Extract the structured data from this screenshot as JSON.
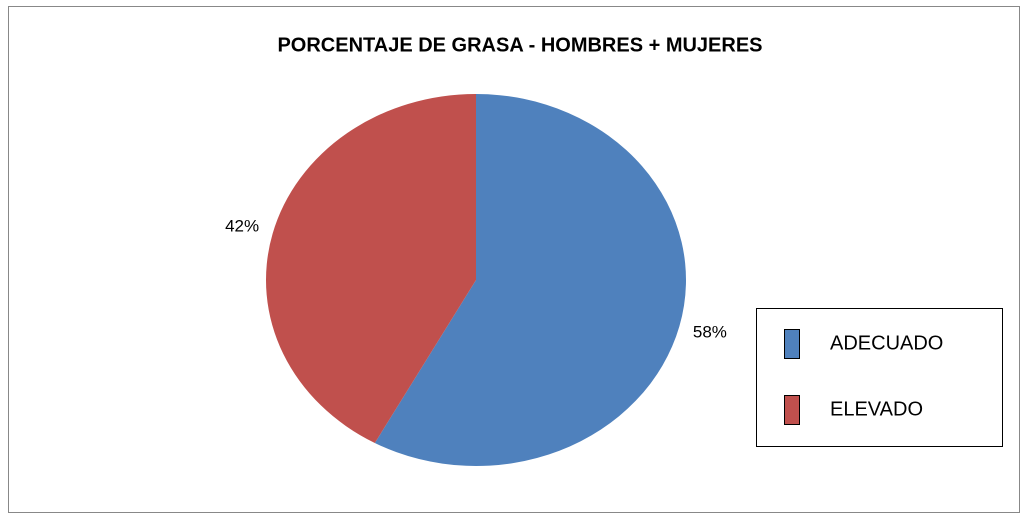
{
  "chart_data": {
    "type": "pie",
    "title": "PORCENTAJE DE GRASA - HOMBRES + MUJERES",
    "categories": [
      "ADECUADO",
      "ELEVADO"
    ],
    "values": [
      58,
      42
    ],
    "value_labels": [
      "58%",
      "42%"
    ],
    "colors": [
      "#4f81bd",
      "#c0504d"
    ],
    "legend": "right"
  }
}
